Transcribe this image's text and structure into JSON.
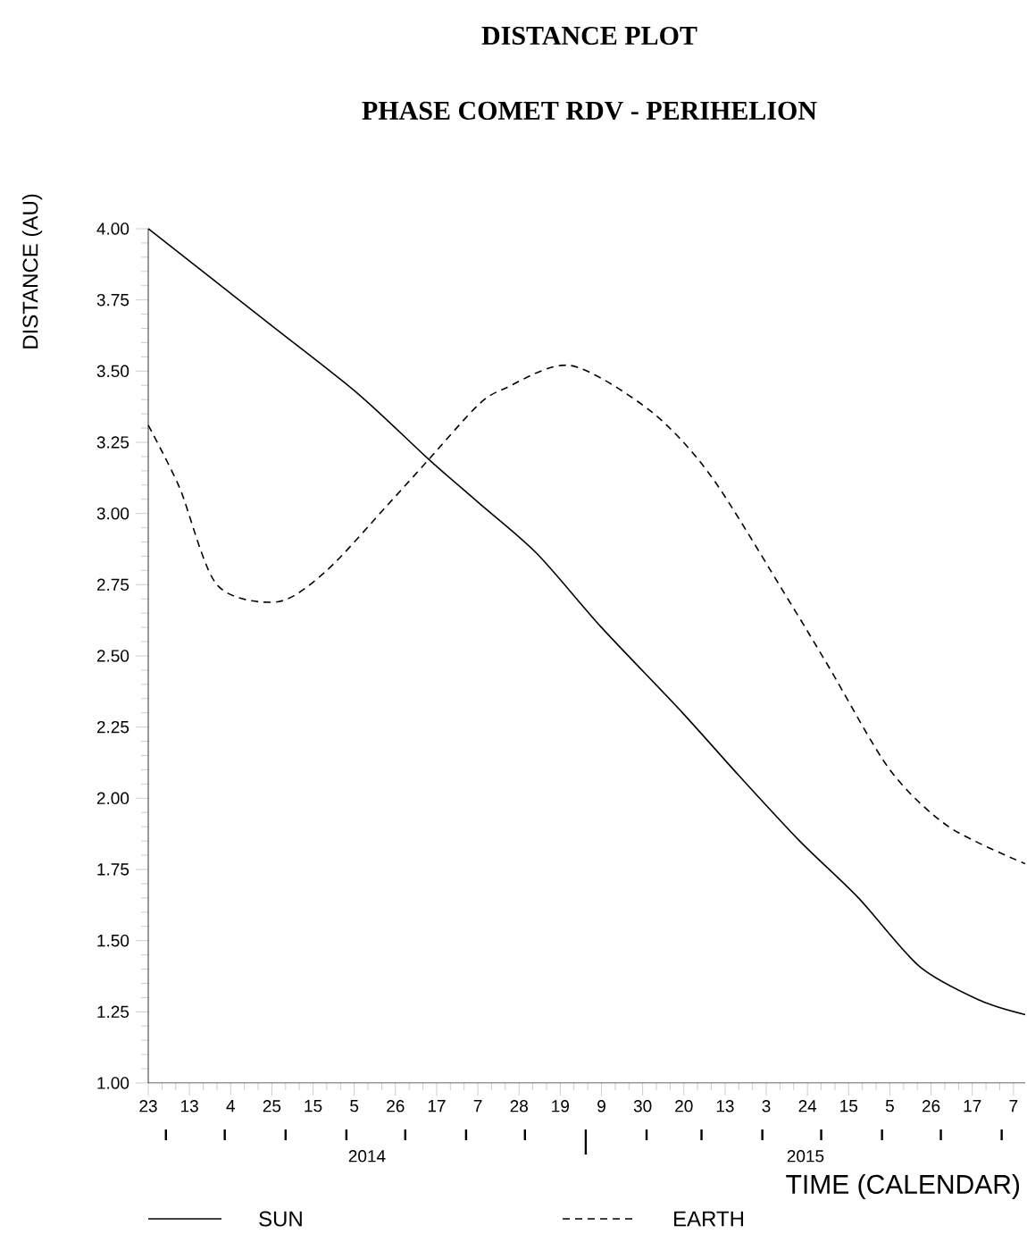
{
  "chart_data": {
    "type": "line",
    "title": "DISTANCE PLOT",
    "subtitle": "PHASE COMET RDV - PERIHELION",
    "xlabel": "TIME (CALENDAR)",
    "ylabel": "DISTANCE (AU)",
    "xlim": [
      "2014-05-23",
      "2015-08-13"
    ],
    "ylim": [
      1.0,
      4.0
    ],
    "xticks": [
      {
        "value": "2014-05-23",
        "label": "23"
      },
      {
        "value": "2014-06-13",
        "label": "13"
      },
      {
        "value": "2014-07-04",
        "label": "4"
      },
      {
        "value": "2014-07-25",
        "label": "25"
      },
      {
        "value": "2014-08-15",
        "label": "15"
      },
      {
        "value": "2014-09-05",
        "label": "5"
      },
      {
        "value": "2014-09-26",
        "label": "26"
      },
      {
        "value": "2014-10-17",
        "label": "17"
      },
      {
        "value": "2014-11-07",
        "label": "7"
      },
      {
        "value": "2014-11-28",
        "label": "28"
      },
      {
        "value": "2014-12-19",
        "label": "19"
      },
      {
        "value": "2015-01-09",
        "label": "9"
      },
      {
        "value": "2015-01-30",
        "label": "30"
      },
      {
        "value": "2015-02-20",
        "label": "20"
      },
      {
        "value": "2015-03-13",
        "label": "13"
      },
      {
        "value": "2015-04-03",
        "label": "3"
      },
      {
        "value": "2015-04-24",
        "label": "24"
      },
      {
        "value": "2015-05-15",
        "label": "15"
      },
      {
        "value": "2015-06-05",
        "label": "5"
      },
      {
        "value": "2015-06-26",
        "label": "26"
      },
      {
        "value": "2015-07-17",
        "label": "17"
      },
      {
        "value": "2015-08-07",
        "label": "7"
      }
    ],
    "annotations": [
      "2014",
      "2015"
    ],
    "yticks": [
      {
        "value": 1.0,
        "label": "1.00"
      },
      {
        "value": 1.25,
        "label": "1.25"
      },
      {
        "value": 1.5,
        "label": "1.50"
      },
      {
        "value": 1.75,
        "label": "1.75"
      },
      {
        "value": 2.0,
        "label": "2.00"
      },
      {
        "value": 2.25,
        "label": "2.25"
      },
      {
        "value": 2.5,
        "label": "2.50"
      },
      {
        "value": 2.75,
        "label": "2.75"
      },
      {
        "value": 3.0,
        "label": "3.00"
      },
      {
        "value": 3.25,
        "label": "3.25"
      },
      {
        "value": 3.5,
        "label": "3.50"
      },
      {
        "value": 3.75,
        "label": "3.75"
      },
      {
        "value": 4.0,
        "label": "4.00"
      }
    ],
    "grid": false,
    "legend": "bottom",
    "series": [
      {
        "name": "SUN",
        "color": "#000000",
        "line_style": "solid",
        "x": [
          "2014-05-23",
          "2014-07-23",
          "2014-09-07",
          "2014-10-13",
          "2014-11-07",
          "2014-12-07",
          "2015-01-09",
          "2015-02-18",
          "2015-03-20",
          "2015-04-20",
          "2015-05-20",
          "2015-06-20",
          "2015-07-21",
          "2015-08-13"
        ],
        "values": [
          4.0,
          3.67,
          3.42,
          3.19,
          3.04,
          2.86,
          2.6,
          2.31,
          2.08,
          1.85,
          1.65,
          1.41,
          1.29,
          1.24
        ]
      },
      {
        "name": "EARTH",
        "color": "#000000",
        "line_style": "dashed",
        "x": [
          "2014-05-23",
          "2014-06-08",
          "2014-06-27",
          "2014-07-28",
          "2014-08-22",
          "2014-09-22",
          "2014-10-13",
          "2014-11-07",
          "2014-11-21",
          "2014-12-24",
          "2015-02-03",
          "2015-03-06",
          "2015-04-14",
          "2015-05-05",
          "2015-06-05",
          "2015-07-05",
          "2015-08-13"
        ],
        "values": [
          3.31,
          3.09,
          2.75,
          2.69,
          2.8,
          3.03,
          3.19,
          3.38,
          3.44,
          3.52,
          3.36,
          3.13,
          2.7,
          2.46,
          2.1,
          1.9,
          1.77
        ]
      }
    ]
  }
}
